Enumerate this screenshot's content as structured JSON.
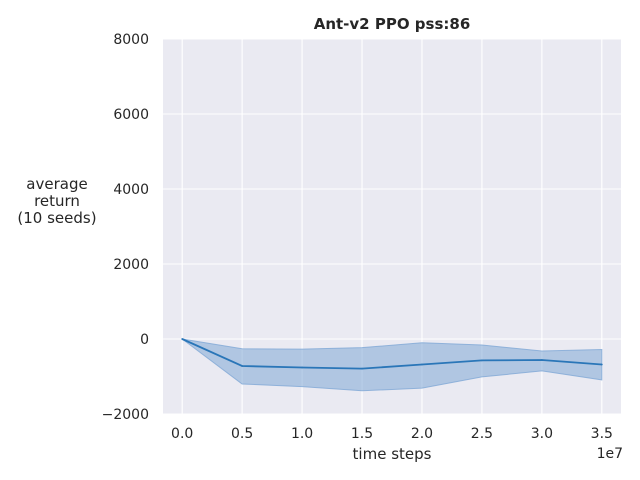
{
  "chart_data": {
    "type": "line",
    "title": "Ant-v2 PPO pss:86",
    "xlabel": "time steps",
    "x_offset_label": "1e7",
    "ylabel_lines": [
      "average",
      "return",
      "(10 seeds)"
    ],
    "xlim": [
      -0.16,
      3.66
    ],
    "ylim": [
      -2000,
      8000
    ],
    "x_ticks": [
      0.0,
      0.5,
      1.0,
      1.5,
      2.0,
      2.5,
      3.0,
      3.5
    ],
    "x_tick_labels": [
      "0.0",
      "0.5",
      "1.0",
      "1.5",
      "2.0",
      "2.5",
      "3.0",
      "3.5"
    ],
    "y_ticks": [
      -2000,
      0,
      2000,
      4000,
      6000,
      8000
    ],
    "y_tick_labels": [
      "−2000",
      "0",
      "2000",
      "4000",
      "6000",
      "8000"
    ],
    "grid": true,
    "x": [
      0.0,
      0.5,
      1.0,
      1.5,
      2.0,
      2.5,
      3.0,
      3.5
    ],
    "series": [
      {
        "values": [
          0,
          -720,
          -760,
          -790,
          -680,
          -570,
          -560,
          -680
        ],
        "lower": [
          0,
          -1200,
          -1270,
          -1380,
          -1310,
          -1010,
          -850,
          -1090
        ],
        "upper": [
          0,
          -260,
          -270,
          -230,
          -100,
          -160,
          -320,
          -280
        ]
      }
    ],
    "colors": {
      "background": "#eaeaf2",
      "grid": "#ffffff",
      "line": "#2a76b8",
      "band": "#7fa8d6"
    }
  }
}
